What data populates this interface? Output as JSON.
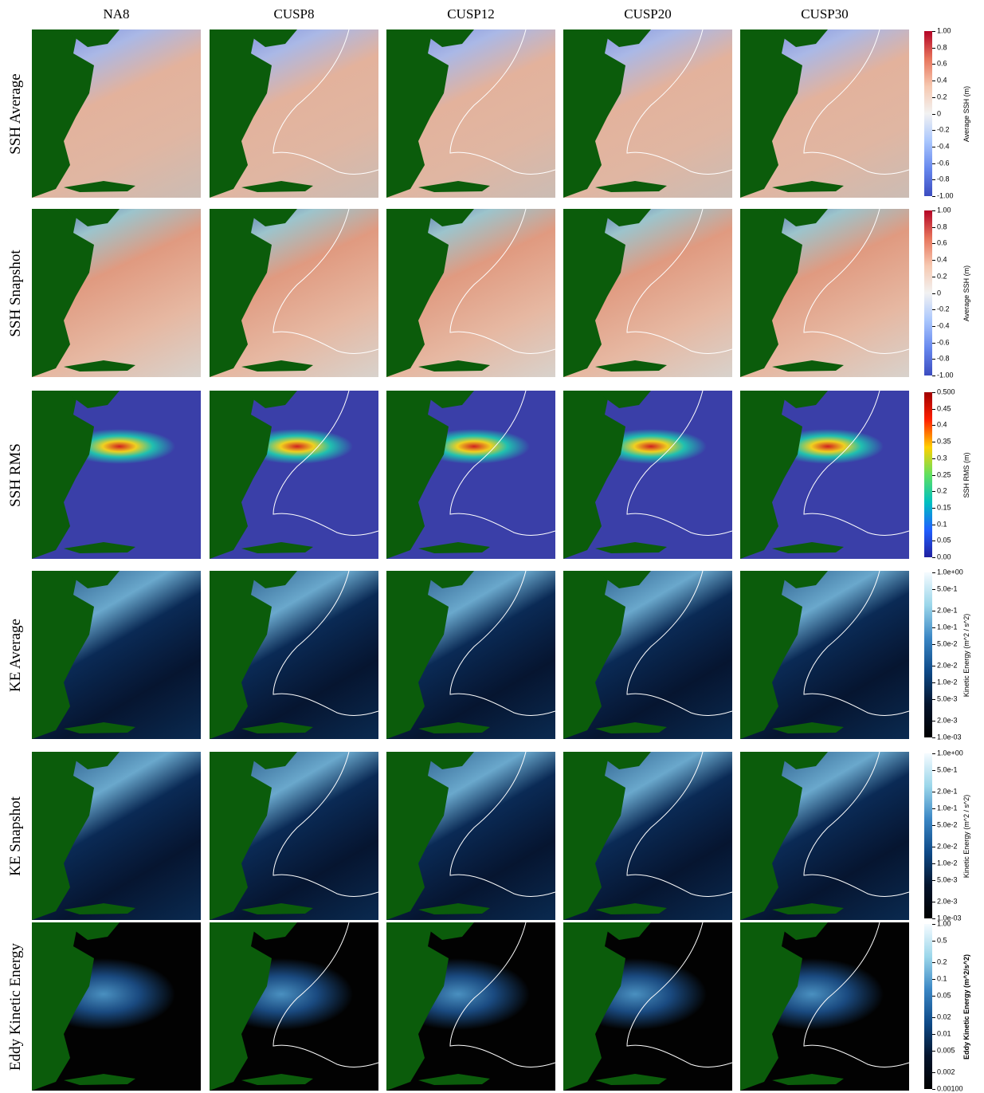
{
  "columns": [
    "NA8",
    "CUSP8",
    "CUSP12",
    "CUSP20",
    "CUSP30"
  ],
  "rows": [
    {
      "label": "SSH Average",
      "colorbar": {
        "title": "Average SSH (m)",
        "scale": "linear",
        "ticks": [
          "1.00",
          "0.8",
          "0.6",
          "0.4",
          "0.2",
          "0",
          "-0.2",
          "-0.4",
          "-0.6",
          "-0.8",
          "-1.00"
        ]
      }
    },
    {
      "label": "SSH Snapshot",
      "colorbar": {
        "title": "Average SSH (m)",
        "scale": "linear",
        "ticks": [
          "1.00",
          "0.8",
          "0.6",
          "0.4",
          "0.2",
          "0",
          "-0.2",
          "-0.4",
          "-0.6",
          "-0.8",
          "-1.00"
        ]
      }
    },
    {
      "label": "SSH RMS",
      "colorbar": {
        "title": "SSH RMS (m)",
        "scale": "linear",
        "ticks": [
          "0.500",
          "0.45",
          "0.4",
          "0.35",
          "0.3",
          "0.25",
          "0.2",
          "0.15",
          "0.1",
          "0.05",
          "0.00"
        ]
      }
    },
    {
      "label": "KE Average",
      "colorbar": {
        "title": "Kinetic Energy (m^2 / s^2)",
        "scale": "log",
        "ticks": [
          "1.0e+00",
          "5.0e-1",
          "2.0e-1",
          "1.0e-1",
          "5.0e-2",
          "2.0e-2",
          "1.0e-2",
          "5.0e-3",
          "2.0e-3",
          "1.0e-03"
        ]
      }
    },
    {
      "label": "KE Snapshot",
      "colorbar": {
        "title": "Kinetic Energy (m^2 / s^2)",
        "scale": "log",
        "ticks": [
          "1.0e+00",
          "5.0e-1",
          "2.0e-1",
          "1.0e-1",
          "5.0e-2",
          "2.0e-2",
          "1.0e-2",
          "5.0e-3",
          "2.0e-3",
          "1.0e-03"
        ]
      }
    },
    {
      "label": "Eddy Kinetic Energy",
      "colorbar": {
        "title": "Eddy Kinetic Energy (m^2/s^2)",
        "scale": "log",
        "ticks": [
          "1.00",
          "0.5",
          "0.2",
          "0.1",
          "0.05",
          "0.02",
          "0.01",
          "0.005",
          "0.002",
          "0.00100"
        ]
      }
    }
  ]
}
